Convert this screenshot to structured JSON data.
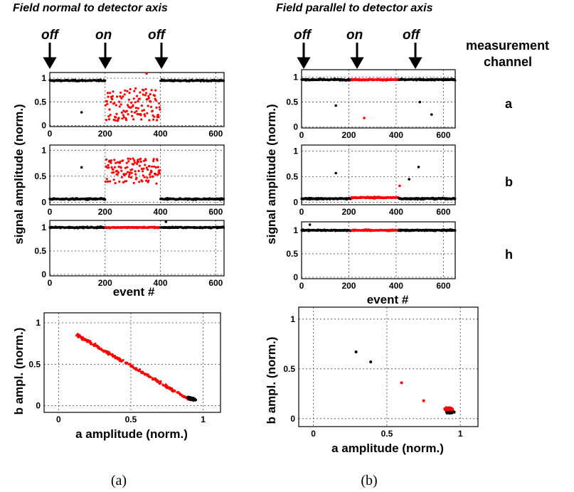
{
  "panel_a": {
    "title": "Field normal to detector axis",
    "caption": "(a)",
    "arrows": [
      "off",
      "on",
      "off"
    ],
    "x_ticks": [
      "0",
      "200",
      "400",
      "600"
    ],
    "x_label": "event #",
    "y_label": "signal amplitude (norm.)",
    "scatter_ylabel": "b ampl. (norm.)",
    "scatter_xlabel": "a amplitude (norm.)"
  },
  "panel_b": {
    "title": "Field parallel to detector axis",
    "caption": "(b)",
    "arrows": [
      "off",
      "on",
      "off"
    ],
    "x_ticks": [
      "0",
      "200",
      "400",
      "600"
    ],
    "x_label": "event #",
    "y_label": "signal amplitude (norm.)",
    "scatter_ylabel": "b ampl. (norm.)",
    "scatter_xlabel": "a amplitude (norm.)"
  },
  "legend": {
    "heading_line1": "measurement",
    "heading_line2": "channel",
    "channels": [
      "a",
      "b",
      "h"
    ]
  },
  "colors": {
    "field_on": "#ff0000",
    "field_off": "#000000"
  },
  "chart_data": [
    {
      "type": "scatter",
      "panel": "a",
      "channel": "a",
      "xlim": [
        0,
        630
      ],
      "ylim": [
        -0.02,
        1.12
      ],
      "x_ticks": [
        0,
        200,
        400,
        600
      ],
      "y_ticks": [
        0,
        0.5,
        1
      ],
      "y_tick_labels": [
        "0",
        "0.5",
        "1"
      ],
      "grid": true,
      "field_on_range": [
        200,
        400
      ],
      "off_level": 0.95,
      "on_range": [
        0.1,
        0.8
      ],
      "outliers": [
        {
          "x": 115,
          "y": 0.28,
          "color": "black"
        },
        {
          "x": 350,
          "y": 1.1,
          "color": "red"
        }
      ]
    },
    {
      "type": "scatter",
      "panel": "a",
      "channel": "b",
      "xlim": [
        0,
        630
      ],
      "ylim": [
        -0.05,
        1.1
      ],
      "x_ticks": [
        0,
        200,
        400,
        600
      ],
      "y_ticks": [
        0,
        0.5,
        1
      ],
      "y_tick_labels": [
        "0",
        "0.5",
        "1"
      ],
      "grid": true,
      "field_on_range": [
        200,
        400
      ],
      "off_level": 0.06,
      "on_range": [
        0.35,
        0.85
      ],
      "outliers": [
        {
          "x": 115,
          "y": 0.67,
          "color": "black"
        }
      ]
    },
    {
      "type": "scatter",
      "panel": "a",
      "channel": "h",
      "xlim": [
        0,
        630
      ],
      "ylim": [
        -0.03,
        1.15
      ],
      "x_ticks": [
        0,
        200,
        400,
        600
      ],
      "y_ticks": [
        0,
        0.5,
        1
      ],
      "y_tick_labels": [
        "0",
        "0.5",
        "1"
      ],
      "grid": true,
      "field_on_range": [
        200,
        400
      ],
      "off_level": 1.0,
      "on_level": 1.0,
      "outliers": [
        {
          "x": 420,
          "y": 1.12,
          "color": "black"
        }
      ]
    },
    {
      "type": "scatter",
      "panel": "b",
      "channel": "a",
      "xlim": [
        0,
        650
      ],
      "ylim": [
        -0.02,
        1.15
      ],
      "x_ticks": [
        0,
        200,
        400,
        600
      ],
      "y_ticks": [
        0,
        0.5,
        1
      ],
      "y_tick_labels": [
        "0",
        "0.5",
        "1"
      ],
      "grid": true,
      "field_on_range": [
        210,
        410
      ],
      "off_level": 0.95,
      "on_level": 0.95,
      "outliers": [
        {
          "x": 145,
          "y": 0.43,
          "color": "black"
        },
        {
          "x": 265,
          "y": 0.18,
          "color": "red"
        },
        {
          "x": 500,
          "y": 0.5,
          "color": "black"
        },
        {
          "x": 550,
          "y": 0.25,
          "color": "black"
        }
      ]
    },
    {
      "type": "scatter",
      "panel": "b",
      "channel": "b",
      "xlim": [
        0,
        650
      ],
      "ylim": [
        -0.05,
        1.12
      ],
      "x_ticks": [
        0,
        200,
        400,
        600
      ],
      "y_ticks": [
        0,
        0.5,
        1
      ],
      "y_tick_labels": [
        "0",
        "0.5",
        "1"
      ],
      "grid": true,
      "field_on_range": [
        210,
        410
      ],
      "off_level": 0.07,
      "on_level": 0.09,
      "outliers": [
        {
          "x": 145,
          "y": 0.57,
          "color": "black"
        },
        {
          "x": 495,
          "y": 0.69,
          "color": "black"
        },
        {
          "x": 455,
          "y": 0.45,
          "color": "black"
        },
        {
          "x": 415,
          "y": 0.32,
          "color": "red"
        }
      ]
    },
    {
      "type": "scatter",
      "panel": "b",
      "channel": "h",
      "xlim": [
        0,
        650
      ],
      "ylim": [
        -0.03,
        1.18
      ],
      "x_ticks": [
        0,
        200,
        400,
        600
      ],
      "y_ticks": [
        0,
        0.5,
        1
      ],
      "y_tick_labels": [
        "0",
        "0.5",
        "1"
      ],
      "grid": true,
      "field_on_range": [
        210,
        410
      ],
      "off_level": 1.0,
      "on_level": 1.0,
      "outliers": [
        {
          "x": 35,
          "y": 1.12,
          "color": "black"
        }
      ]
    },
    {
      "type": "scatter",
      "panel": "a",
      "plot": "b vs a",
      "xlim": [
        -0.1,
        1.12
      ],
      "ylim": [
        -0.08,
        1.12
      ],
      "x_ticks": [
        0,
        0.5,
        1
      ],
      "x_tick_labels": [
        "0",
        "0.5",
        "1"
      ],
      "y_ticks": [
        0,
        0.5,
        1
      ],
      "y_tick_labels": [
        "0",
        "0.5",
        "1"
      ],
      "grid": true,
      "on_relation": "b ≈ 1 − a, a from 0.12 to 0.9",
      "off_cluster": {
        "a": 0.92,
        "b": 0.07
      }
    },
    {
      "type": "scatter",
      "panel": "b",
      "plot": "b vs a",
      "xlim": [
        -0.1,
        1.12
      ],
      "ylim": [
        -0.08,
        1.12
      ],
      "x_ticks": [
        0,
        0.5,
        1
      ],
      "x_tick_labels": [
        "0",
        "0.5",
        "1"
      ],
      "y_ticks": [
        0,
        0.5,
        1
      ],
      "y_tick_labels": [
        "0",
        "0.5",
        "1"
      ],
      "grid": true,
      "on_cluster": {
        "a": 0.92,
        "b": 0.1
      },
      "off_cluster": {
        "a": 0.93,
        "b": 0.07
      },
      "outliers": [
        {
          "a": 0.29,
          "b": 0.67,
          "color": "black"
        },
        {
          "a": 0.39,
          "b": 0.57,
          "color": "black"
        },
        {
          "a": 0.6,
          "b": 0.36,
          "color": "red"
        },
        {
          "a": 0.75,
          "b": 0.18,
          "color": "red"
        }
      ]
    }
  ]
}
